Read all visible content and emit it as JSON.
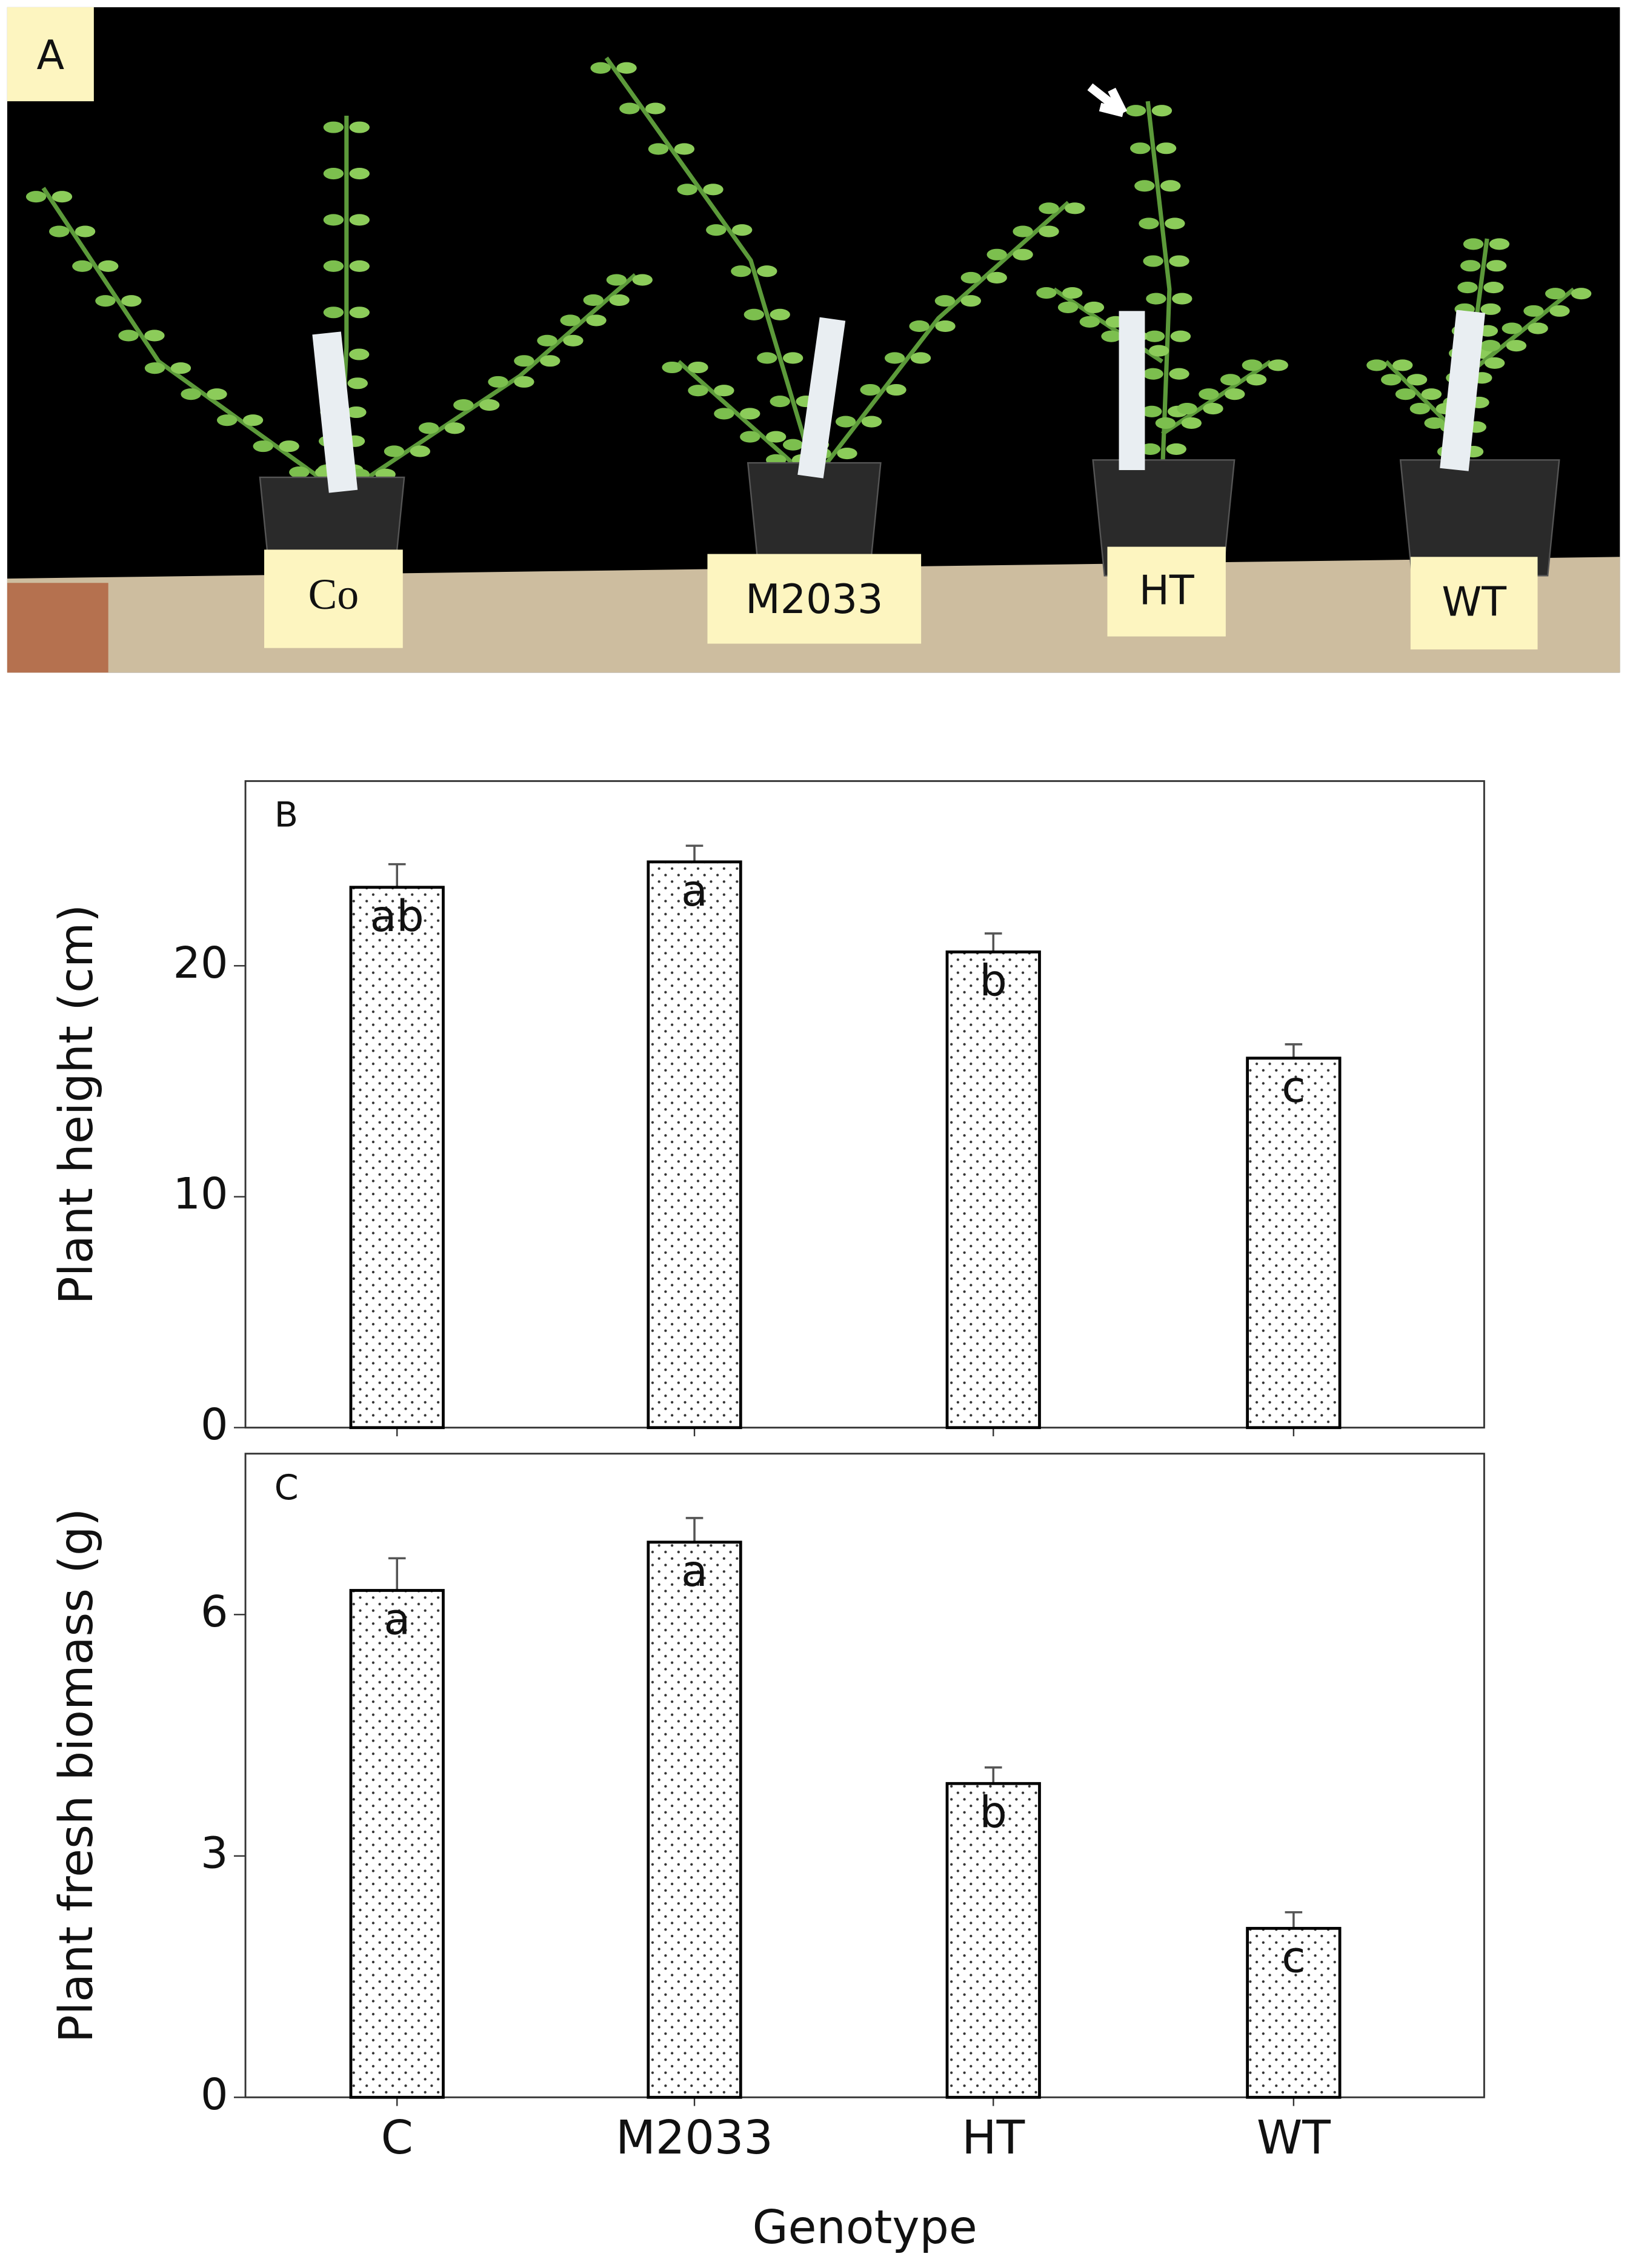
{
  "photo": {
    "panel_label": "A",
    "labels": [
      "Co",
      "M2033",
      "HT",
      "WT"
    ]
  },
  "chart_data": [
    {
      "type": "bar",
      "panel_label": "B",
      "ylabel": "Plant height (cm)",
      "values": [
        23.4,
        24.5,
        20.6,
        16.0
      ],
      "errors": [
        1.0,
        0.7,
        0.8,
        0.6
      ],
      "annotations": [
        "ab",
        "a",
        "b",
        "c"
      ],
      "ylim": [
        0,
        28
      ],
      "yticks": [
        0,
        10,
        20
      ],
      "pattern": "dots"
    },
    {
      "type": "bar",
      "panel_label": "C",
      "ylabel": "Plant fresh biomass (g)",
      "xlabel": "Genotype",
      "categories": [
        "C",
        "M2033",
        "HT",
        "WT"
      ],
      "values": [
        6.3,
        6.9,
        3.9,
        2.1
      ],
      "errors": [
        0.4,
        0.3,
        0.2,
        0.2
      ],
      "annotations": [
        "a",
        "a",
        "b",
        "c"
      ],
      "ylim": [
        0,
        8
      ],
      "yticks": [
        0,
        3,
        6
      ],
      "pattern": "dots"
    }
  ]
}
